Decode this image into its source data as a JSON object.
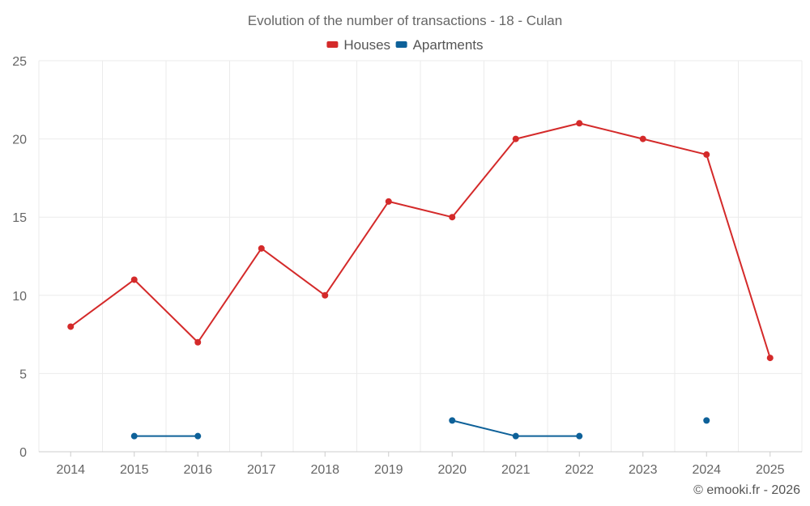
{
  "chart_data": {
    "type": "line",
    "title": "Evolution of the number of transactions - 18 - Culan",
    "xlabel": "",
    "ylabel": "",
    "categories": [
      "2014",
      "2015",
      "2016",
      "2017",
      "2018",
      "2019",
      "2020",
      "2021",
      "2022",
      "2023",
      "2024",
      "2025"
    ],
    "ylim": [
      0,
      25
    ],
    "yticks": [
      0,
      5,
      10,
      15,
      20,
      25
    ],
    "grid": true,
    "legend_position": "top-center",
    "series": [
      {
        "name": "Houses",
        "color": "#d42a2a",
        "values": [
          8,
          11,
          7,
          13,
          10,
          16,
          15,
          20,
          21,
          20,
          19,
          6
        ]
      },
      {
        "name": "Apartments",
        "color": "#0e6199",
        "values": [
          null,
          1,
          1,
          null,
          null,
          null,
          2,
          1,
          1,
          null,
          2,
          null
        ]
      }
    ],
    "credit": "© emooki.fr - 2026"
  }
}
